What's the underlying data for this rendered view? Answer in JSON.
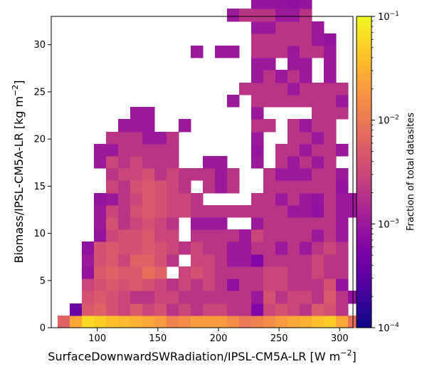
{
  "chart_data": {
    "type": "heatmap",
    "xlabel": "SurfaceDownwardSWRadiation/IPSL-CM5A-LR [W m$^{-2}$]",
    "xlabel_main": "SurfaceDownwardSWRadiation/IPSL-CM5A-LR [W m",
    "xlabel_sup": "−2",
    "xlabel_end": "]",
    "ylabel": "Biomass/IPSL-CM5A-LR [kg m$^{-2}$]",
    "ylabel_main": "Biomass/IPSL-CM5A-LR [kg m",
    "ylabel_sup": "−2",
    "ylabel_end": "]",
    "xlim": [
      62,
      311
    ],
    "ylim": [
      0,
      33
    ],
    "x_ticks": [
      100,
      150,
      200,
      250,
      300
    ],
    "y_ticks": [
      0,
      5,
      10,
      15,
      20,
      25,
      30
    ],
    "bin_width": 10,
    "bin_height": 1.3,
    "colorbar": {
      "label": "Fraction of total datasites",
      "scale": "log",
      "vmin": 0.0001,
      "vmax": 0.1,
      "ticks": [
        {
          "base": "10",
          "exp": "−4",
          "value": 0.0001
        },
        {
          "base": "10",
          "exp": "−3",
          "value": 0.001
        },
        {
          "base": "10",
          "exp": "−2",
          "value": 0.01
        },
        {
          "base": "10",
          "exp": "−1",
          "value": 0.1
        }
      ],
      "colormap": "plasma"
    },
    "x_bin_starts": [
      67,
      77,
      87,
      97,
      107,
      117,
      127,
      137,
      147,
      157,
      167,
      177,
      187,
      197,
      207,
      217,
      227,
      237,
      247,
      257,
      267,
      277,
      287,
      297,
      307
    ],
    "rows": [
      {
        "bin": 0,
        "values": [
          0.006,
          0.025,
          0.06,
          0.05,
          0.04,
          0.035,
          0.03,
          0.025,
          0.02,
          0.012,
          0.015,
          0.02,
          0.02,
          0.02,
          0.015,
          0.01,
          0.012,
          0.015,
          0.02,
          0.025,
          0.03,
          0.04,
          0.05,
          0.025,
          0.008
        ]
      },
      {
        "bin": 1,
        "values": [
          null,
          0.0004,
          0.005,
          0.006,
          0.004,
          0.003,
          0.005,
          0.003,
          0.004,
          0.002,
          0.003,
          0.002,
          0.003,
          0.003,
          0.002,
          0.002,
          0.0006,
          0.003,
          0.004,
          0.003,
          0.002,
          0.005,
          0.004,
          0.002,
          null
        ]
      },
      {
        "bin": 2,
        "values": [
          null,
          null,
          0.004,
          0.005,
          0.004,
          0.003,
          0.002,
          0.002,
          0.003,
          0.003,
          0.002,
          0.002,
          0.002,
          0.002,
          0.002,
          0.002,
          0.001,
          0.004,
          0.002,
          0.003,
          0.003,
          0.002,
          0.005,
          0.002,
          0.0008
        ]
      },
      {
        "bin": 3,
        "values": [
          null,
          null,
          0.003,
          0.004,
          0.005,
          0.004,
          0.005,
          0.004,
          0.003,
          0.002,
          0.003,
          0.002,
          0.003,
          0.002,
          0.0008,
          0.002,
          0.002,
          0.003,
          0.003,
          0.002,
          0.002,
          0.002,
          0.004,
          0.0009,
          null
        ]
      },
      {
        "bin": 4,
        "values": [
          null,
          null,
          0.0009,
          0.005,
          0.006,
          0.005,
          0.005,
          0.008,
          0.006,
          null,
          0.003,
          0.004,
          0.003,
          0.002,
          0.002,
          0.002,
          0.002,
          0.003,
          0.003,
          0.002,
          0.002,
          0.003,
          0.002,
          0.002,
          null
        ]
      },
      {
        "bin": 5,
        "values": [
          null,
          null,
          0.001,
          0.004,
          0.005,
          0.003,
          0.006,
          0.006,
          0.004,
          0.002,
          null,
          0.003,
          0.003,
          0.002,
          0.001,
          0.001,
          0.0006,
          0.002,
          0.002,
          0.002,
          0.002,
          0.003,
          0.002,
          0.002,
          null
        ]
      },
      {
        "bin": 6,
        "values": [
          null,
          null,
          0.0008,
          0.004,
          0.005,
          0.004,
          0.004,
          0.005,
          0.004,
          0.003,
          0.002,
          0.003,
          0.002,
          0.002,
          0.001,
          0.001,
          0.002,
          0.002,
          0.001,
          0.002,
          0.001,
          0.002,
          0.003,
          0.002,
          null
        ]
      },
      {
        "bin": 7,
        "values": [
          null,
          null,
          null,
          0.0009,
          0.003,
          0.004,
          0.004,
          0.005,
          0.003,
          0.003,
          null,
          0.002,
          0.002,
          0.002,
          0.002,
          0.001,
          0.003,
          0.002,
          0.002,
          0.002,
          0.002,
          0.001,
          0.002,
          0.001,
          null
        ]
      },
      {
        "bin": 8,
        "values": [
          null,
          null,
          null,
          0.001,
          0.004,
          0.002,
          0.003,
          0.004,
          0.003,
          0.002,
          null,
          0.001,
          0.001,
          0.001,
          null,
          null,
          0.001,
          0.002,
          0.002,
          0.002,
          0.002,
          0.002,
          0.002,
          0.001,
          null
        ]
      },
      {
        "bin": 9,
        "values": [
          null,
          null,
          null,
          0.001,
          0.003,
          0.002,
          0.004,
          0.005,
          0.004,
          0.003,
          0.003,
          0.002,
          0.002,
          0.002,
          0.002,
          0.002,
          0.002,
          0.002,
          0.002,
          0.001,
          0.001,
          0.0008,
          0.002,
          0.001,
          0.001
        ]
      },
      {
        "bin": 10,
        "values": [
          null,
          null,
          null,
          0.0009,
          0.001,
          0.002,
          0.003,
          0.005,
          0.004,
          0.003,
          0.003,
          0.002,
          null,
          null,
          null,
          null,
          0.002,
          0.002,
          0.001,
          0.002,
          0.001,
          0.0009,
          0.002,
          0.001,
          0.001
        ]
      },
      {
        "bin": 11,
        "values": [
          null,
          null,
          null,
          null,
          0.003,
          0.002,
          0.004,
          0.005,
          0.004,
          0.003,
          0.002,
          null,
          0.002,
          0.001,
          0.002,
          null,
          null,
          0.002,
          0.002,
          0.002,
          0.002,
          0.002,
          0.002,
          0.0009,
          null
        ]
      },
      {
        "bin": 12,
        "values": [
          null,
          null,
          null,
          null,
          0.002,
          0.003,
          0.003,
          0.004,
          0.002,
          0.003,
          0.002,
          0.002,
          0.002,
          0.001,
          0.002,
          null,
          null,
          0.002,
          0.001,
          0.001,
          0.001,
          0.002,
          0.002,
          0.001,
          null
        ]
      },
      {
        "bin": 13,
        "values": [
          null,
          null,
          null,
          0.001,
          0.003,
          0.002,
          0.003,
          0.002,
          0.002,
          0.002,
          null,
          null,
          0.001,
          0.001,
          null,
          null,
          0.001,
          null,
          0.002,
          0.001,
          0.002,
          0.001,
          0.002,
          null,
          null
        ]
      },
      {
        "bin": 14,
        "values": [
          null,
          null,
          null,
          0.001,
          0.001,
          0.002,
          0.002,
          0.002,
          0.002,
          0.002,
          null,
          null,
          null,
          null,
          null,
          null,
          0.0009,
          null,
          0.002,
          0.002,
          0.001,
          0.002,
          0.002,
          0.001,
          null
        ]
      },
      {
        "bin": 15,
        "values": [
          null,
          null,
          null,
          null,
          0.002,
          0.002,
          0.002,
          0.001,
          0.001,
          0.002,
          null,
          null,
          null,
          null,
          null,
          null,
          0.001,
          null,
          null,
          0.002,
          0.002,
          0.001,
          0.002,
          null,
          null
        ]
      },
      {
        "bin": 16,
        "values": [
          null,
          null,
          null,
          null,
          null,
          0.001,
          0.001,
          0.001,
          null,
          null,
          0.001,
          null,
          null,
          null,
          null,
          null,
          0.002,
          0.002,
          null,
          0.002,
          0.001,
          0.002,
          0.002,
          null,
          null
        ]
      },
      {
        "bin": 17,
        "values": [
          null,
          null,
          null,
          null,
          null,
          null,
          0.001,
          0.001,
          null,
          null,
          null,
          null,
          null,
          null,
          null,
          null,
          0.001,
          null,
          null,
          null,
          null,
          0.002,
          0.002,
          0.002,
          null
        ]
      },
      {
        "bin": 18,
        "values": [
          null,
          null,
          null,
          null,
          null,
          null,
          null,
          null,
          null,
          null,
          null,
          null,
          null,
          null,
          0.001,
          null,
          0.002,
          0.002,
          0.002,
          0.002,
          0.002,
          0.002,
          0.002,
          0.001,
          null
        ]
      },
      {
        "bin": 19,
        "values": [
          null,
          null,
          null,
          null,
          null,
          null,
          null,
          null,
          null,
          null,
          null,
          null,
          null,
          null,
          null,
          0.002,
          0.002,
          0.002,
          0.002,
          0.001,
          0.002,
          0.002,
          0.002,
          0.002,
          null
        ]
      },
      {
        "bin": 20,
        "values": [
          null,
          null,
          null,
          null,
          null,
          null,
          null,
          null,
          null,
          null,
          null,
          null,
          null,
          null,
          null,
          null,
          0.001,
          0.002,
          0.001,
          0.002,
          0.001,
          null,
          0.001,
          null,
          null
        ]
      },
      {
        "bin": 21,
        "values": [
          null,
          null,
          null,
          null,
          null,
          null,
          null,
          null,
          null,
          null,
          null,
          null,
          null,
          null,
          null,
          null,
          0.001,
          0.001,
          null,
          0.001,
          0.001,
          null,
          0.001,
          null,
          null
        ]
      },
      {
        "bin": 22,
        "values": [
          null,
          null,
          null,
          null,
          null,
          null,
          null,
          null,
          null,
          null,
          null,
          0.001,
          null,
          0.001,
          0.001,
          null,
          0.002,
          0.002,
          0.002,
          0.001,
          0.002,
          0.002,
          0.001,
          null,
          null
        ]
      },
      {
        "bin": 23,
        "values": [
          null,
          null,
          null,
          null,
          null,
          null,
          null,
          null,
          null,
          null,
          null,
          null,
          null,
          null,
          null,
          null,
          0.002,
          0.002,
          0.002,
          0.002,
          0.002,
          0.001,
          0.0009,
          null,
          null
        ]
      },
      {
        "bin": 24,
        "values": [
          null,
          null,
          null,
          null,
          null,
          null,
          null,
          null,
          null,
          null,
          null,
          null,
          null,
          null,
          null,
          null,
          0.001,
          0.001,
          0.002,
          0.002,
          0.002,
          0.001,
          null,
          null,
          null
        ]
      },
      {
        "bin": 25,
        "values": [
          null,
          null,
          null,
          null,
          null,
          null,
          null,
          null,
          null,
          null,
          null,
          null,
          null,
          null,
          0.001,
          0.002,
          0.002,
          0.002,
          0.001,
          0.001,
          0.002,
          null,
          null,
          null,
          null
        ]
      },
      {
        "bin": 26,
        "values": [
          null,
          null,
          null,
          null,
          null,
          null,
          null,
          null,
          null,
          null,
          null,
          null,
          null,
          null,
          null,
          null,
          0.0009,
          0.0009,
          0.0009,
          0.0008,
          0.0009,
          null,
          null,
          null,
          null
        ]
      },
      {
        "bin": 27,
        "values": [
          null,
          null,
          null,
          null,
          null,
          null,
          null,
          null,
          null,
          null,
          null,
          null,
          null,
          null,
          null,
          null,
          0.0009,
          0.0009,
          null,
          0.0008,
          null,
          null,
          null,
          null,
          null
        ]
      },
      {
        "bin": 28,
        "values": [
          null,
          null,
          null,
          null,
          null,
          null,
          null,
          null,
          null,
          null,
          null,
          null,
          null,
          null,
          null,
          null,
          0.0007,
          0.0007,
          0.0007,
          null,
          null,
          null,
          null,
          null,
          null
        ]
      }
    ]
  }
}
